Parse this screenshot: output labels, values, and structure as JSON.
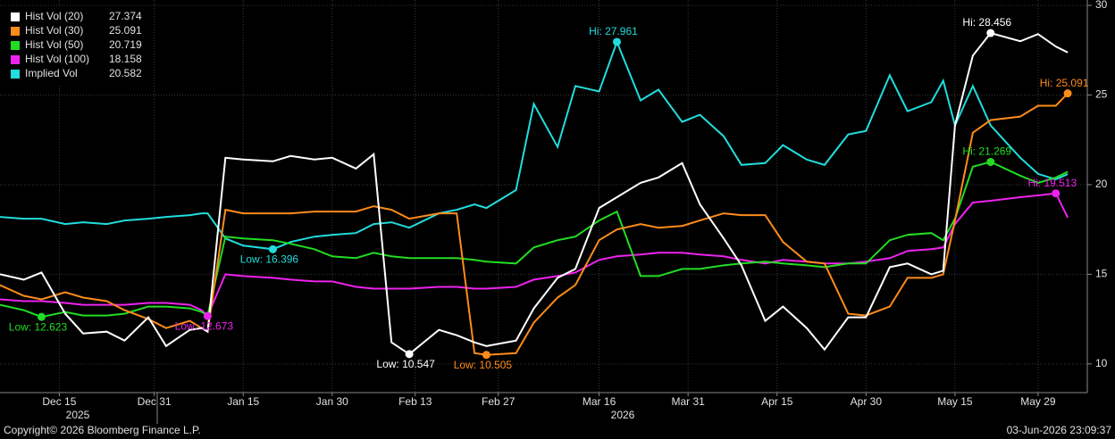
{
  "chart_data": {
    "type": "line",
    "x": [
      "2025-12-05",
      "2025-12-09",
      "2025-12-12",
      "2025-12-16",
      "2025-12-19",
      "2025-12-23",
      "2025-12-26",
      "2025-12-30",
      "2026-01-02",
      "2026-01-06",
      "2026-01-08",
      "2026-01-09",
      "2026-01-12",
      "2026-01-15",
      "2026-01-20",
      "2026-01-23",
      "2026-01-27",
      "2026-01-30",
      "2026-02-03",
      "2026-02-06",
      "2026-02-09",
      "2026-02-12",
      "2026-02-17",
      "2026-02-20",
      "2026-02-23",
      "2026-02-25",
      "2026-03-02",
      "2026-03-05",
      "2026-03-09",
      "2026-03-12",
      "2026-03-16",
      "2026-03-19",
      "2026-03-23",
      "2026-03-26",
      "2026-03-30",
      "2026-04-02",
      "2026-04-06",
      "2026-04-09",
      "2026-04-13",
      "2026-04-16",
      "2026-04-20",
      "2026-04-23",
      "2026-04-27",
      "2026-04-30",
      "2026-05-04",
      "2026-05-07",
      "2026-05-11",
      "2026-05-13",
      "2026-05-15",
      "2026-05-18",
      "2026-05-21",
      "2026-05-26",
      "2026-05-29",
      "2026-06-01",
      "2026-06-03"
    ],
    "series": [
      {
        "name": "Hist Vol (20)",
        "color": "#ffffff",
        "values": [
          15.0,
          14.7,
          15.1,
          12.8,
          11.7,
          11.8,
          11.3,
          12.6,
          11.0,
          11.9,
          12.0,
          11.8,
          21.5,
          21.4,
          21.3,
          21.6,
          21.4,
          21.5,
          20.9,
          21.7,
          11.2,
          10.547,
          11.9,
          11.6,
          11.2,
          11.0,
          11.3,
          13.1,
          14.8,
          15.3,
          18.7,
          19.3,
          20.1,
          20.4,
          21.2,
          18.9,
          17.0,
          15.5,
          12.4,
          13.2,
          12.0,
          10.8,
          12.6,
          12.6,
          15.4,
          15.6,
          15.0,
          15.2,
          23.3,
          27.2,
          28.456,
          28.0,
          28.4,
          27.7,
          27.374
        ],
        "value_labels": [
          null,
          null,
          null,
          null,
          null,
          null,
          null,
          null,
          null,
          null,
          null,
          null,
          null,
          null,
          null,
          null,
          null,
          null,
          null,
          null,
          null,
          "Low: 10.547",
          null,
          null,
          null,
          null,
          null,
          null,
          null,
          null,
          null,
          null,
          null,
          null,
          null,
          null,
          null,
          null,
          null,
          null,
          null,
          null,
          null,
          null,
          null,
          null,
          null,
          null,
          null,
          null,
          "Hi: 28.456",
          null,
          null,
          null,
          null
        ]
      },
      {
        "name": "Hist Vol (30)",
        "color": "#ff8c1a",
        "values": [
          14.4,
          13.8,
          13.6,
          14.0,
          13.7,
          13.5,
          13.0,
          12.5,
          12.0,
          12.4,
          12.0,
          11.8,
          18.6,
          18.4,
          18.4,
          18.4,
          18.5,
          18.5,
          18.5,
          18.8,
          18.6,
          18.1,
          18.4,
          18.4,
          10.6,
          10.505,
          10.6,
          12.3,
          13.7,
          14.4,
          16.9,
          17.5,
          17.8,
          17.6,
          17.7,
          18.0,
          18.4,
          18.3,
          18.3,
          16.8,
          15.7,
          15.6,
          12.8,
          12.7,
          13.2,
          14.8,
          14.8,
          15.0,
          18.0,
          22.9,
          23.6,
          23.8,
          24.4,
          24.4,
          25.091
        ],
        "value_labels": [
          null,
          null,
          null,
          null,
          null,
          null,
          null,
          null,
          null,
          null,
          null,
          null,
          null,
          null,
          null,
          null,
          null,
          null,
          null,
          null,
          null,
          null,
          null,
          null,
          null,
          "Low: 10.505",
          null,
          null,
          null,
          null,
          null,
          null,
          null,
          null,
          null,
          null,
          null,
          null,
          null,
          null,
          null,
          null,
          null,
          null,
          null,
          null,
          null,
          null,
          null,
          null,
          null,
          null,
          null,
          null,
          "Hi: 25.091"
        ]
      },
      {
        "name": "Hist Vol (50)",
        "color": "#22dd22",
        "values": [
          13.3,
          13.0,
          12.623,
          12.9,
          12.7,
          12.7,
          12.8,
          13.2,
          13.2,
          13.1,
          12.9,
          12.7,
          17.1,
          17.0,
          16.9,
          16.7,
          16.4,
          16.0,
          15.9,
          16.2,
          16.0,
          15.9,
          15.9,
          15.9,
          15.8,
          15.7,
          15.6,
          16.5,
          16.9,
          17.1,
          18.0,
          18.5,
          14.9,
          14.9,
          15.3,
          15.3,
          15.5,
          15.6,
          15.7,
          15.6,
          15.5,
          15.4,
          15.6,
          15.6,
          16.9,
          17.2,
          17.3,
          16.9,
          18.1,
          21.0,
          21.269,
          20.5,
          20.1,
          20.4,
          20.719
        ],
        "value_labels": [
          null,
          null,
          "Low: 12.623",
          null,
          null,
          null,
          null,
          null,
          null,
          null,
          null,
          null,
          null,
          null,
          null,
          null,
          null,
          null,
          null,
          null,
          null,
          null,
          null,
          null,
          null,
          null,
          null,
          null,
          null,
          null,
          null,
          null,
          null,
          null,
          null,
          null,
          null,
          null,
          null,
          null,
          null,
          null,
          null,
          null,
          null,
          null,
          null,
          null,
          null,
          null,
          "Hi: 21.269",
          null,
          null,
          null,
          null
        ]
      },
      {
        "name": "Hist Vol (100)",
        "color": "#ee22ee",
        "values": [
          13.6,
          13.5,
          13.5,
          13.4,
          13.3,
          13.3,
          13.3,
          13.4,
          13.4,
          13.3,
          13.0,
          12.673,
          15.0,
          14.9,
          14.8,
          14.7,
          14.6,
          14.6,
          14.3,
          14.2,
          14.2,
          14.2,
          14.3,
          14.3,
          14.2,
          14.2,
          14.3,
          14.7,
          14.9,
          15.1,
          15.8,
          16.0,
          16.1,
          16.2,
          16.2,
          16.1,
          16.0,
          15.8,
          15.6,
          15.8,
          15.7,
          15.6,
          15.6,
          15.7,
          15.9,
          16.3,
          16.4,
          16.5,
          17.8,
          19.0,
          19.1,
          19.3,
          19.4,
          19.513,
          18.158
        ],
        "value_labels": [
          null,
          null,
          null,
          null,
          null,
          null,
          null,
          null,
          null,
          null,
          null,
          "Low: 12.673",
          null,
          null,
          null,
          null,
          null,
          null,
          null,
          null,
          null,
          null,
          null,
          null,
          null,
          null,
          null,
          null,
          null,
          null,
          null,
          null,
          null,
          null,
          null,
          null,
          null,
          null,
          null,
          null,
          null,
          null,
          null,
          null,
          null,
          null,
          null,
          null,
          null,
          null,
          null,
          null,
          null,
          "Hi: 19.513",
          null
        ]
      },
      {
        "name": "Implied Vol",
        "color": "#22dddd",
        "values": [
          18.2,
          18.1,
          18.1,
          17.8,
          17.9,
          17.8,
          18.0,
          18.1,
          18.2,
          18.3,
          18.4,
          18.4,
          17.0,
          16.6,
          16.396,
          16.8,
          17.1,
          17.2,
          17.3,
          17.8,
          17.9,
          17.6,
          18.4,
          18.6,
          18.9,
          18.7,
          19.7,
          24.5,
          22.1,
          25.5,
          25.2,
          27.961,
          24.7,
          25.3,
          23.5,
          23.9,
          22.7,
          21.1,
          21.2,
          22.2,
          21.4,
          21.1,
          22.8,
          23.0,
          26.1,
          24.1,
          24.6,
          25.8,
          23.3,
          25.5,
          23.3,
          21.5,
          20.6,
          20.3,
          20.582
        ],
        "value_labels": [
          null,
          null,
          null,
          null,
          null,
          null,
          null,
          null,
          null,
          null,
          null,
          null,
          null,
          null,
          "Low: 16.396",
          null,
          null,
          null,
          null,
          null,
          null,
          null,
          null,
          null,
          null,
          null,
          null,
          null,
          null,
          null,
          null,
          "Hi: 27.961",
          null,
          null,
          null,
          null,
          null,
          null,
          null,
          null,
          null,
          null,
          null,
          null,
          null,
          null,
          null,
          null,
          null,
          null,
          null,
          null,
          null,
          null,
          null
        ]
      }
    ],
    "xlim": [
      "2025-12-05",
      "2026-06-06"
    ],
    "xticks": [
      {
        "value": "2025-12-15",
        "label": "Dec 15"
      },
      {
        "value": "2025-12-31",
        "label": "Dec 31"
      },
      {
        "value": "2026-01-15",
        "label": "Jan 15"
      },
      {
        "value": "2026-01-30",
        "label": "Jan 30"
      },
      {
        "value": "2026-02-13",
        "label": "Feb 13"
      },
      {
        "value": "2026-02-27",
        "label": "Feb 27"
      },
      {
        "value": "2026-03-16",
        "label": "Mar 16"
      },
      {
        "value": "2026-03-31",
        "label": "Mar 31"
      },
      {
        "value": "2026-04-15",
        "label": "Apr 15"
      },
      {
        "value": "2026-04-30",
        "label": "Apr 30"
      },
      {
        "value": "2026-05-15",
        "label": "May 15"
      },
      {
        "value": "2026-05-29",
        "label": "May 29"
      }
    ],
    "year_labels": [
      "2025",
      "2026"
    ],
    "ylim": [
      8.4,
      30.3
    ],
    "yticks": [
      10,
      15,
      20,
      25,
      30
    ],
    "grid": true,
    "legend": "top-left",
    "footer_left": "Copyright© 2026 Bloomberg Finance L.P.",
    "footer_right": "03-Jun-2026 23:09:37"
  }
}
